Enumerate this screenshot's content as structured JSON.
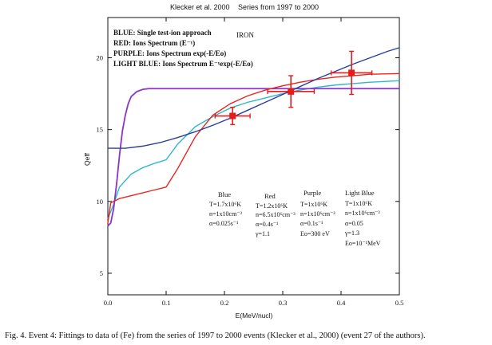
{
  "header": {
    "left": "Klecker et al. 2000",
    "right": "Series from 1997 to 2000"
  },
  "caption": "Fig. 4. Event 4: Fittings to data of (Fe) from the series of 1997 to  2000 events (Klecker et al., 2000) (event 27 of the authors).",
  "colors": {
    "blue": "#2a3f9e",
    "red": "#e8261f",
    "purple": "#8a35c9",
    "lightblue": "#2fb6cf",
    "data": "#e41c1c"
  },
  "chart_data": {
    "type": "line",
    "title": "",
    "xlabel": "E(MeV/nucl)",
    "ylabel": "Qeff",
    "xlim": [
      0.0,
      0.5
    ],
    "ylim": [
      3.5,
      22.8
    ],
    "x_ticks": [
      "0.0",
      "0.1",
      "0.2",
      "0.3",
      "0.4",
      "0.5"
    ],
    "x_tick_values": [
      0.0,
      0.1,
      0.2,
      0.3,
      0.4,
      0.5
    ],
    "y_ticks": [
      "5",
      "10",
      "15",
      "20"
    ],
    "y_tick_values": [
      5,
      10,
      15,
      20
    ],
    "element_label": "IRON",
    "legend": [
      {
        "series": "blue",
        "text": "BLUE:  Single test-ion approach"
      },
      {
        "series": "red",
        "text": "RED: Ions Spectrum (E⁻ˠ)"
      },
      {
        "series": "purple",
        "text": "PURPLE: Ions Spectrum   exp(-E/Eo)"
      },
      {
        "series": "lightblue",
        "text": "LIGHT BLUE: Ions Spectrum E⁻ˠexp(-E/Eo)"
      }
    ],
    "series": [
      {
        "name": "blue",
        "x": [
          0.0,
          0.03,
          0.06,
          0.09,
          0.12,
          0.15,
          0.18,
          0.21,
          0.24,
          0.27,
          0.3,
          0.33,
          0.36,
          0.39,
          0.42,
          0.45,
          0.48,
          0.5
        ],
        "y": [
          13.7,
          13.7,
          13.85,
          14.1,
          14.45,
          14.85,
          15.3,
          15.8,
          16.35,
          16.9,
          17.45,
          18.0,
          18.55,
          19.05,
          19.55,
          20.0,
          20.45,
          20.7
        ]
      },
      {
        "name": "red",
        "x": [
          0.0,
          0.005,
          0.02,
          0.05,
          0.08,
          0.1,
          0.12,
          0.15,
          0.18,
          0.21,
          0.24,
          0.27,
          0.3,
          0.33,
          0.36,
          0.39,
          0.42,
          0.45,
          0.5
        ],
        "y": [
          8.5,
          9.9,
          10.2,
          10.5,
          10.8,
          11.0,
          12.3,
          14.5,
          16.0,
          16.8,
          17.35,
          17.75,
          18.05,
          18.3,
          18.5,
          18.65,
          18.75,
          18.85,
          18.9
        ]
      },
      {
        "name": "purple",
        "x": [
          0.0,
          0.005,
          0.01,
          0.015,
          0.02,
          0.025,
          0.03,
          0.035,
          0.04,
          0.05,
          0.06,
          0.07,
          0.08,
          0.1,
          0.2,
          0.3,
          0.4,
          0.5
        ],
        "y": [
          8.3,
          8.5,
          9.5,
          11.2,
          13.2,
          14.9,
          16.0,
          16.8,
          17.3,
          17.65,
          17.8,
          17.85,
          17.85,
          17.85,
          17.85,
          17.85,
          17.85,
          17.85
        ]
      },
      {
        "name": "lightblue",
        "x": [
          0.0,
          0.01,
          0.02,
          0.04,
          0.06,
          0.08,
          0.1,
          0.12,
          0.15,
          0.18,
          0.21,
          0.24,
          0.27,
          0.3,
          0.33,
          0.36,
          0.39,
          0.42,
          0.45,
          0.5
        ],
        "y": [
          8.8,
          9.8,
          11.0,
          11.9,
          12.35,
          12.65,
          12.9,
          14.0,
          15.2,
          15.9,
          16.5,
          16.9,
          17.2,
          17.5,
          17.75,
          17.95,
          18.1,
          18.2,
          18.3,
          18.4
        ]
      }
    ],
    "data_points": [
      {
        "x": 0.214,
        "y": 15.95,
        "x_err": 0.03,
        "y_err": 0.6
      },
      {
        "x": 0.314,
        "y": 17.65,
        "x_err": 0.04,
        "y_err": 1.1
      },
      {
        "x": 0.418,
        "y": 18.95,
        "x_err": 0.035,
        "y_err": 1.5
      }
    ],
    "parameters": [
      {
        "title": "Blue",
        "lines": [
          "T=1.7x10⁶K",
          "n=1x10cm⁻³",
          "α=0.025s⁻¹"
        ]
      },
      {
        "title": "Red",
        "lines": [
          "T=1.2x10⁶K",
          "n=6.5x10⁶cm⁻³",
          "α=0.4s⁻¹",
          "γ=1.1"
        ]
      },
      {
        "title": "Purple",
        "lines": [
          "T=1x10⁶K",
          "n=1x10⁶cm⁻³",
          "α=0.1s⁻¹",
          "Eo=300 eV"
        ]
      },
      {
        "title": "Light Blue",
        "lines": [
          "T=1x10⁶K",
          "n=1x10⁶cm⁻³",
          "α=0.05",
          "γ=1.3",
          "Eo=10⁻¹MeV"
        ]
      }
    ]
  }
}
